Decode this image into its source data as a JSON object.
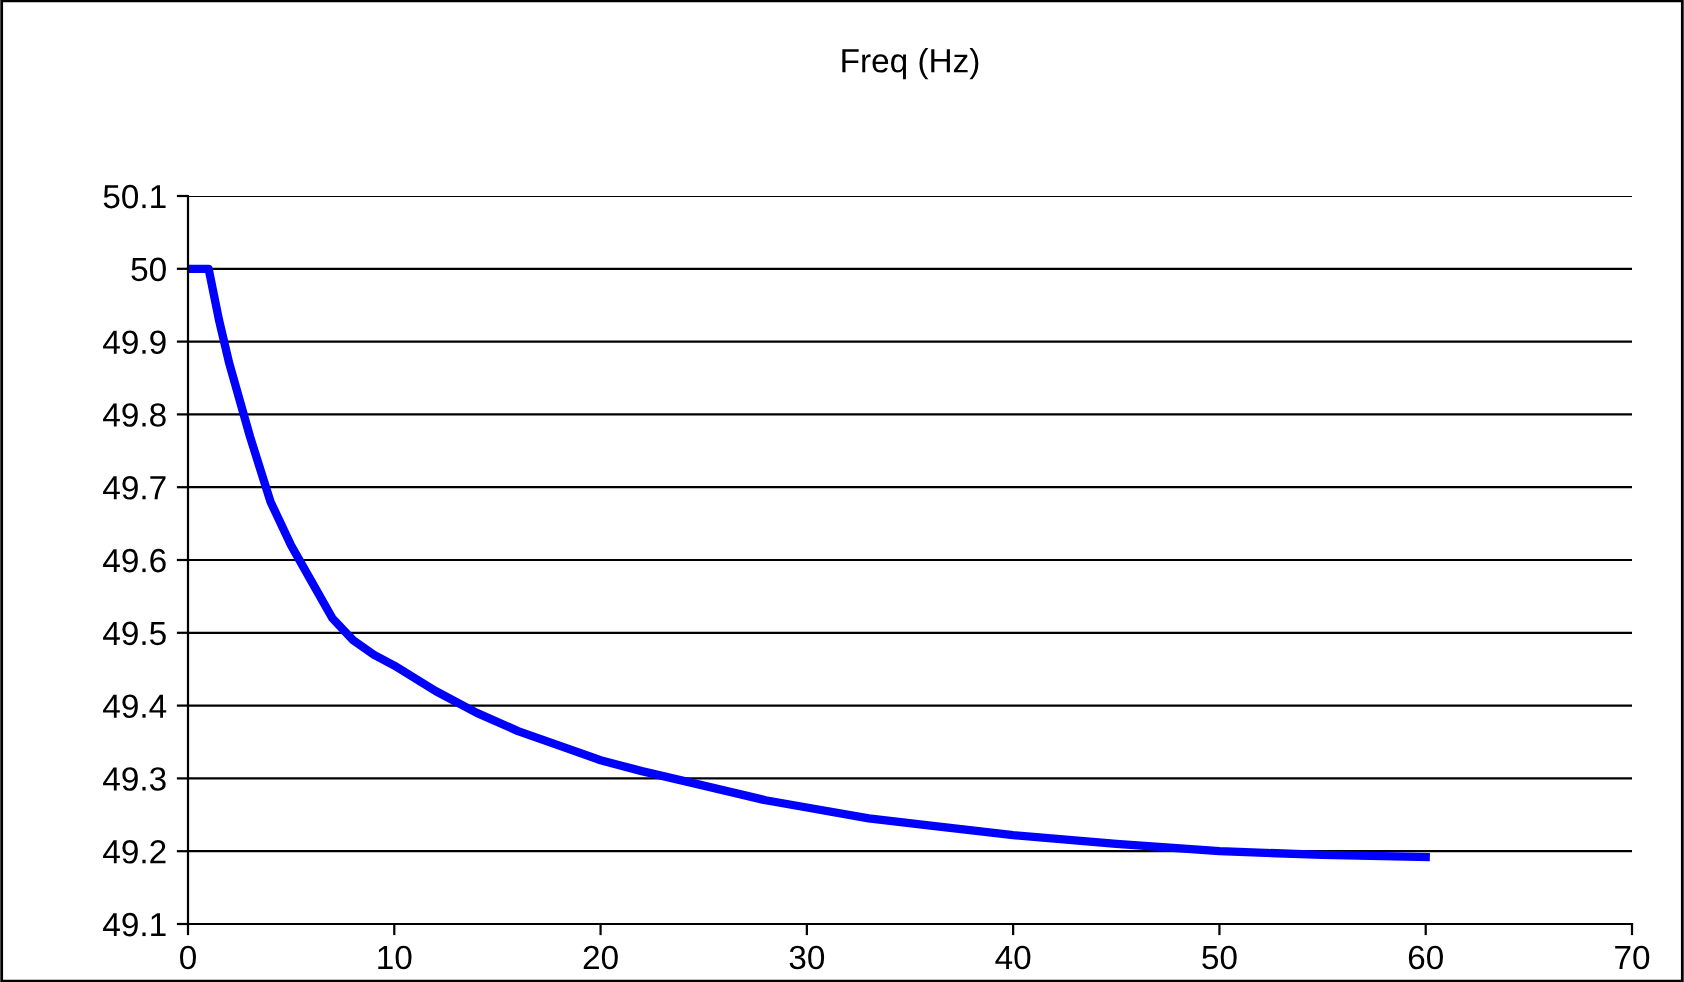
{
  "chart_data": {
    "type": "line",
    "title": "Freq (Hz)",
    "x": [
      0,
      1,
      1.5,
      2,
      3,
      4,
      5,
      6,
      7,
      8,
      9,
      10,
      12,
      14,
      16,
      18,
      20,
      22,
      25,
      28,
      30,
      33,
      36,
      40,
      45,
      50,
      55,
      60
    ],
    "series": [
      {
        "color": "#0000ff",
        "values": [
          50.0,
          50.0,
          49.93,
          49.87,
          49.77,
          49.68,
          49.62,
          49.57,
          49.52,
          49.49,
          49.47,
          49.455,
          49.42,
          49.39,
          49.365,
          49.345,
          49.325,
          49.31,
          49.29,
          49.27,
          49.26,
          49.245,
          49.235,
          49.222,
          49.21,
          49.2,
          49.195,
          49.192
        ]
      }
    ],
    "xlim": [
      0,
      70
    ],
    "xticks": [
      0,
      10,
      20,
      30,
      40,
      50,
      60,
      70
    ],
    "ylim": [
      49.1,
      50.1
    ],
    "yticks": [
      49.1,
      49.2,
      49.3,
      49.4,
      49.5,
      49.6,
      49.7,
      49.8,
      49.9,
      50,
      50.1
    ],
    "grid": "y",
    "marker": "none",
    "line_style": "solid",
    "legend": false
  }
}
